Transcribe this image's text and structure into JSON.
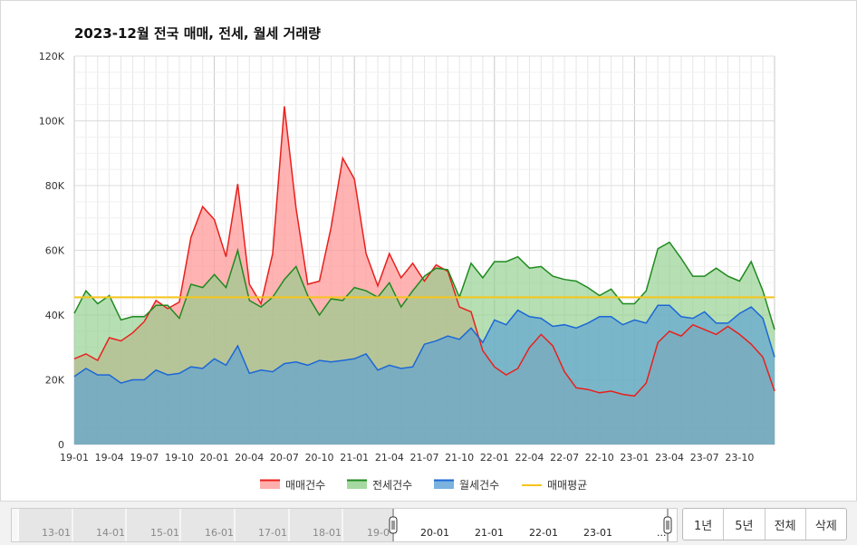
{
  "title": "2023-12월 전국 매매, 전세, 월세 거래량",
  "colors": {
    "sale_line": "#e8201c",
    "sale_fill": "#ff9a9a",
    "jeonse_line": "#1f8a1f",
    "jeonse_fill": "#8fcf8a",
    "wolse_line": "#1c67d6",
    "wolse_fill": "#5a9fd6",
    "avg_line": "#f7c51a",
    "grid": "#e6e6e6",
    "axis_text": "#333333"
  },
  "chart_data": {
    "type": "area",
    "title": "2023-12월 전국 매매, 전세, 월세 거래량",
    "x_tick_labels": [
      "19-01",
      "19-04",
      "19-07",
      "19-10",
      "20-01",
      "20-04",
      "20-07",
      "20-10",
      "21-01",
      "21-04",
      "21-07",
      "21-10",
      "22-01",
      "22-04",
      "22-07",
      "22-10",
      "23-01",
      "23-04",
      "23-07",
      "23-10"
    ],
    "y_tick_labels": [
      "0",
      "20K",
      "40K",
      "60K",
      "80K",
      "100K",
      "120K"
    ],
    "ylim": [
      0,
      120000
    ],
    "grid": true,
    "legend_position": "bottom",
    "average_line": {
      "name": "매매평균",
      "value": 45500
    },
    "series": [
      {
        "name": "매매건수",
        "values": [
          26500,
          28000,
          26000,
          33000,
          32000,
          34500,
          38000,
          44500,
          42000,
          44000,
          64000,
          73500,
          69500,
          58000,
          80500,
          49500,
          43500,
          59000,
          104500,
          73000,
          49500,
          50500,
          67000,
          88500,
          82000,
          59000,
          49000,
          59000,
          51500,
          56000,
          50500,
          55500,
          53500,
          42500,
          41000,
          29000,
          24000,
          21500,
          23500,
          30000,
          34000,
          30500,
          22500,
          17500,
          17000,
          16000,
          16500,
          15500,
          15000,
          19000,
          31500,
          35000,
          33500,
          37000,
          35500,
          34000,
          36500,
          34000,
          31000,
          27000,
          16500
        ]
      },
      {
        "name": "전세건수",
        "values": [
          40500,
          47500,
          43500,
          46000,
          38500,
          39500,
          39500,
          43000,
          43000,
          39000,
          49500,
          48500,
          52500,
          48500,
          60000,
          44500,
          42500,
          45500,
          51000,
          55000,
          46000,
          40000,
          45000,
          44500,
          48500,
          47500,
          45500,
          50000,
          42500,
          47500,
          52000,
          54500,
          54000,
          45500,
          56000,
          51500,
          56500,
          56500,
          58000,
          54500,
          55000,
          52000,
          51000,
          50500,
          48500,
          46000,
          48000,
          43500,
          43500,
          47500,
          60500,
          62500,
          57500,
          52000,
          52000,
          54500,
          52000,
          50500,
          56500,
          47500,
          35500
        ]
      },
      {
        "name": "월세건수",
        "values": [
          21000,
          23500,
          21500,
          21500,
          19000,
          20000,
          20000,
          23000,
          21500,
          22000,
          24000,
          23500,
          26500,
          24500,
          30500,
          22000,
          23000,
          22500,
          25000,
          25500,
          24500,
          26000,
          25500,
          26000,
          26500,
          28000,
          23000,
          24500,
          23500,
          24000,
          31000,
          32000,
          33500,
          32500,
          36000,
          31500,
          38500,
          37000,
          41500,
          39500,
          39000,
          36500,
          37000,
          36000,
          37500,
          39500,
          39500,
          37000,
          38500,
          37500,
          43000,
          43000,
          39500,
          39000,
          41000,
          37500,
          37500,
          40500,
          42500,
          39000,
          27000
        ]
      }
    ]
  },
  "navigator": {
    "year_labels": [
      "13-01",
      "14-01",
      "15-01",
      "16-01",
      "17-01",
      "18-01",
      "19-0",
      "20-01",
      "21-01",
      "22-01",
      "23-01",
      "..."
    ]
  },
  "range_buttons": [
    "1년",
    "5년",
    "전체",
    "삭제"
  ]
}
